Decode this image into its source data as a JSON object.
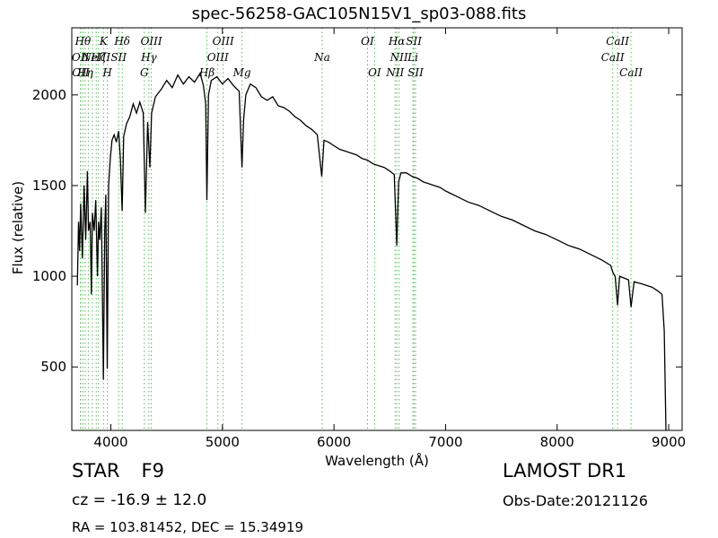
{
  "chart_data": {
    "type": "line",
    "title": "spec-56258-GAC105N15V1_sp03-088.fits",
    "xlabel": "Wavelength (Å)",
    "ylabel": "Flux (relative)",
    "xlim": [
      3650,
      9120
    ],
    "ylim": [
      150,
      2370
    ],
    "xticks": [
      4000,
      5000,
      6000,
      7000,
      8000,
      9000
    ],
    "yticks": [
      500,
      1000,
      1500,
      2000
    ],
    "line_color": "#000000",
    "marker_color": "#55bb55",
    "grid": false,
    "series": [
      {
        "points": [
          [
            3700,
            950
          ],
          [
            3710,
            1300
          ],
          [
            3720,
            1140
          ],
          [
            3730,
            1400
          ],
          [
            3745,
            1100
          ],
          [
            3760,
            1500
          ],
          [
            3775,
            1200
          ],
          [
            3790,
            1580
          ],
          [
            3800,
            1250
          ],
          [
            3815,
            1300
          ],
          [
            3825,
            900
          ],
          [
            3835,
            1350
          ],
          [
            3850,
            1250
          ],
          [
            3865,
            1420
          ],
          [
            3880,
            1000
          ],
          [
            3890,
            1300
          ],
          [
            3900,
            1200
          ],
          [
            3915,
            1380
          ],
          [
            3933,
            430
          ],
          [
            3945,
            1250
          ],
          [
            3955,
            1450
          ],
          [
            3968,
            490
          ],
          [
            3980,
            1500
          ],
          [
            3995,
            1650
          ],
          [
            4010,
            1750
          ],
          [
            4030,
            1780
          ],
          [
            4050,
            1740
          ],
          [
            4070,
            1800
          ],
          [
            4085,
            1650
          ],
          [
            4101,
            1360
          ],
          [
            4115,
            1770
          ],
          [
            4140,
            1840
          ],
          [
            4170,
            1880
          ],
          [
            4200,
            1950
          ],
          [
            4230,
            1900
          ],
          [
            4260,
            1960
          ],
          [
            4290,
            1900
          ],
          [
            4310,
            1350
          ],
          [
            4330,
            1850
          ],
          [
            4350,
            1600
          ],
          [
            4365,
            1900
          ],
          [
            4400,
            1990
          ],
          [
            4450,
            2030
          ],
          [
            4500,
            2080
          ],
          [
            4550,
            2040
          ],
          [
            4600,
            2110
          ],
          [
            4650,
            2060
          ],
          [
            4700,
            2100
          ],
          [
            4750,
            2070
          ],
          [
            4800,
            2120
          ],
          [
            4830,
            2050
          ],
          [
            4850,
            1950
          ],
          [
            4861,
            1420
          ],
          [
            4875,
            2000
          ],
          [
            4900,
            2080
          ],
          [
            4950,
            2100
          ],
          [
            5000,
            2060
          ],
          [
            5050,
            2090
          ],
          [
            5100,
            2050
          ],
          [
            5150,
            2020
          ],
          [
            5175,
            1600
          ],
          [
            5190,
            1860
          ],
          [
            5210,
            2000
          ],
          [
            5250,
            2060
          ],
          [
            5300,
            2040
          ],
          [
            5350,
            1990
          ],
          [
            5400,
            1970
          ],
          [
            5450,
            1990
          ],
          [
            5500,
            1940
          ],
          [
            5550,
            1930
          ],
          [
            5600,
            1910
          ],
          [
            5650,
            1880
          ],
          [
            5700,
            1860
          ],
          [
            5750,
            1830
          ],
          [
            5800,
            1810
          ],
          [
            5850,
            1780
          ],
          [
            5890,
            1550
          ],
          [
            5910,
            1750
          ],
          [
            5950,
            1740
          ],
          [
            6000,
            1720
          ],
          [
            6050,
            1700
          ],
          [
            6100,
            1690
          ],
          [
            6150,
            1680
          ],
          [
            6200,
            1670
          ],
          [
            6250,
            1650
          ],
          [
            6300,
            1640
          ],
          [
            6350,
            1620
          ],
          [
            6400,
            1610
          ],
          [
            6450,
            1600
          ],
          [
            6500,
            1580
          ],
          [
            6540,
            1560
          ],
          [
            6563,
            1170
          ],
          [
            6580,
            1520
          ],
          [
            6600,
            1570
          ],
          [
            6650,
            1570
          ],
          [
            6700,
            1550
          ],
          [
            6750,
            1540
          ],
          [
            6800,
            1520
          ],
          [
            6850,
            1510
          ],
          [
            6900,
            1500
          ],
          [
            6950,
            1490
          ],
          [
            7000,
            1470
          ],
          [
            7100,
            1440
          ],
          [
            7200,
            1410
          ],
          [
            7300,
            1390
          ],
          [
            7400,
            1360
          ],
          [
            7500,
            1330
          ],
          [
            7600,
            1310
          ],
          [
            7700,
            1280
          ],
          [
            7800,
            1250
          ],
          [
            7900,
            1230
          ],
          [
            8000,
            1200
          ],
          [
            8100,
            1170
          ],
          [
            8200,
            1150
          ],
          [
            8300,
            1120
          ],
          [
            8400,
            1090
          ],
          [
            8480,
            1060
          ],
          [
            8500,
            1020
          ],
          [
            8520,
            1000
          ],
          [
            8542,
            840
          ],
          [
            8560,
            1000
          ],
          [
            8600,
            990
          ],
          [
            8640,
            980
          ],
          [
            8662,
            830
          ],
          [
            8690,
            970
          ],
          [
            8750,
            960
          ],
          [
            8800,
            950
          ],
          [
            8850,
            940
          ],
          [
            8900,
            920
          ],
          [
            8940,
            900
          ],
          [
            8960,
            700
          ],
          [
            8975,
            150
          ]
        ]
      }
    ],
    "lines": [
      {
        "x": 3727,
        "label": "OII",
        "row": 2
      },
      {
        "x": 3730,
        "label": "OII",
        "row": 3
      },
      {
        "x": 3750,
        "label": "Hθ",
        "row": 1
      },
      {
        "x": 3770,
        "label": "Hη",
        "row": 3
      },
      {
        "x": 3798,
        "label": "",
        "row": 0
      },
      {
        "x": 3835,
        "label": "",
        "row": 0
      },
      {
        "x": 3869,
        "label": "NeIII",
        "row": 2
      },
      {
        "x": 3889,
        "label": "Hζ",
        "row": 2
      },
      {
        "x": 3934,
        "label": "K",
        "row": 1
      },
      {
        "x": 3969,
        "label": "H",
        "row": 3
      },
      {
        "x": 4070,
        "label": "SII",
        "row": 2
      },
      {
        "x": 4102,
        "label": "Hδ",
        "row": 1
      },
      {
        "x": 4300,
        "label": "G",
        "row": 3
      },
      {
        "x": 4341,
        "label": "Hγ",
        "row": 2
      },
      {
        "x": 4363,
        "label": "OIII",
        "row": 1
      },
      {
        "x": 4861,
        "label": "Hβ",
        "row": 3
      },
      {
        "x": 4959,
        "label": "OIII",
        "row": 2
      },
      {
        "x": 5007,
        "label": "OIII",
        "row": 1
      },
      {
        "x": 5175,
        "label": "Mg",
        "row": 3
      },
      {
        "x": 5894,
        "label": "Na",
        "row": 2
      },
      {
        "x": 6300,
        "label": "OI",
        "row": 1
      },
      {
        "x": 6364,
        "label": "OI",
        "row": 3
      },
      {
        "x": 6548,
        "label": "NII",
        "row": 3
      },
      {
        "x": 6563,
        "label": "Hα",
        "row": 1
      },
      {
        "x": 6583,
        "label": "NII",
        "row": 2
      },
      {
        "x": 6707,
        "label": "Li",
        "row": 2
      },
      {
        "x": 6716,
        "label": "SII",
        "row": 1
      },
      {
        "x": 6731,
        "label": "SII",
        "row": 3
      },
      {
        "x": 8498,
        "label": "CaII",
        "row": 2
      },
      {
        "x": 8542,
        "label": "CaII",
        "row": 1
      },
      {
        "x": 8662,
        "label": "CaII",
        "row": 3
      }
    ]
  },
  "info": {
    "object_class": "STAR",
    "subclass": "F9",
    "redshift": "cz = -16.9 ± 12.0",
    "coords": "RA = 103.81452, DEC = 15.34919",
    "survey": "LAMOST DR1",
    "obs_date": "Obs-Date:20121126"
  }
}
